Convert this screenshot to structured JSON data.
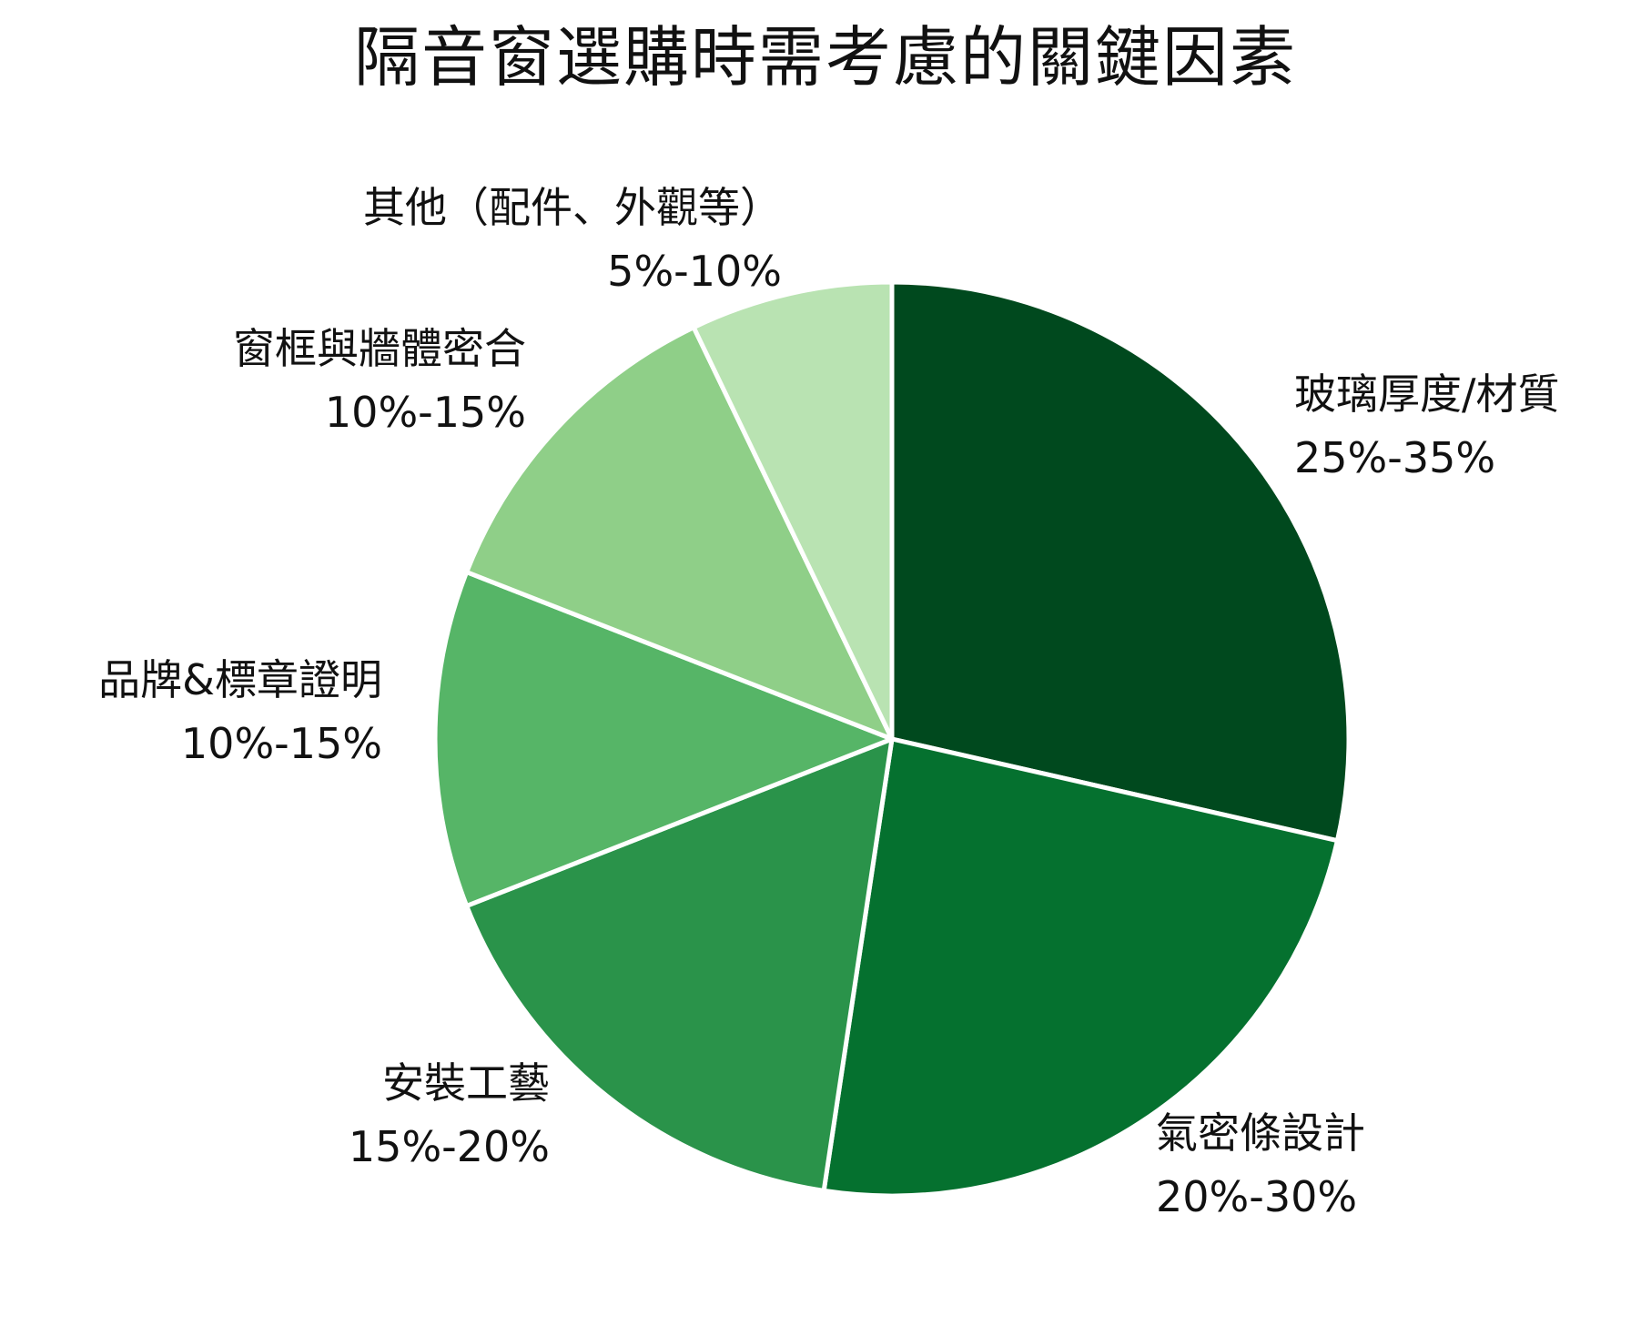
{
  "chart_data": {
    "type": "pie",
    "title": "隔音窗選購時需考慮的關鍵因素",
    "start_angle_deg": 0,
    "direction": "clockwise",
    "slices": [
      {
        "label": "玻璃厚度/材質",
        "range_text": "25%-35%",
        "value": 30,
        "color": "#00491e"
      },
      {
        "label": "氣密條設計",
        "range_text": "20%-30%",
        "value": 25,
        "color": "#05712f"
      },
      {
        "label": "安裝工藝",
        "range_text": "15%-20%",
        "value": 17.5,
        "color": "#2a934a"
      },
      {
        "label": "品牌&標章證明",
        "range_text": "10%-15%",
        "value": 12.5,
        "color": "#56b567"
      },
      {
        "label": "窗框與牆體密合",
        "range_text": "10%-15%",
        "value": 12.5,
        "color": "#8fcf88"
      },
      {
        "label": "其他（配件、外觀等）",
        "range_text": "5%-10%",
        "value": 7.5,
        "color": "#b9e3b2"
      }
    ]
  }
}
